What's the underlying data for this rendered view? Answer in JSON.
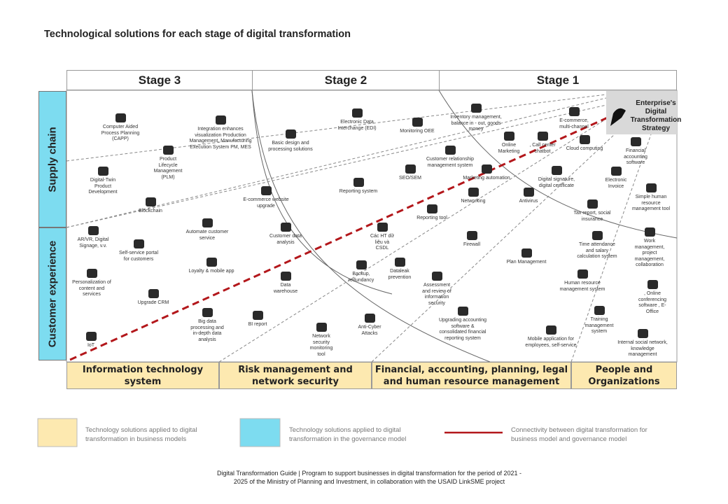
{
  "title": "Technological solutions for each stage of digital transformation",
  "stages": [
    "Stage 3",
    "Stage 2",
    "Stage 1"
  ],
  "side_labels": [
    "Supply chain",
    "Customer experience"
  ],
  "corner": "Enterprise's Digital Transformation Strategy",
  "items": [
    "Computer Aided Process Planning (CAPP)",
    "Integration enhances visualization Production Management, Manufacturing Execution System PM, MES",
    "Digital-Twin Product Development",
    "Product Lifecycle Management (PLM)",
    "Blockchain",
    "Basic design and processing solutions",
    "Electronic Data Interchange (EDI)",
    "Monitoring OEE",
    "Inventory management, balance in - out, goods money",
    "E-commerce website upgrade",
    "Reporting system",
    "SEO/SEM",
    "Customer relationship management system",
    "Online Marketing",
    ", Call center chatbot",
    "E-commerce, multi-channel",
    "Cloud computing",
    "Marketing automation",
    "Digital signature, digital certificate",
    "Financial accounting software",
    "Electronic Invoice",
    "Simple human resource management tool",
    "Antivirus",
    "Networking",
    "Reporting tool",
    "Tax report, social insurance",
    "AR/VR, Digital Signage, v.v.",
    "Self-service portal for customers",
    "Automate customer service",
    "Customer data analysis",
    "Các HT dữ liệu và CSDL",
    "Firewall",
    "Plan Management",
    "Time attendance and salary calculation system",
    "Work management, project management, collaboration",
    "Personalization of content and services",
    "Upgrade CRM",
    "Loyalty & mobile app",
    "Data warehouse",
    "Backup, redundancy",
    "Dataleak prevention",
    "Assessment and review of information security",
    "Human resource management system",
    ", Online conferencing software , E-Office",
    "IoT",
    "BI report",
    "Big data processing and in-depth data analysis",
    "Network security monitoring tool",
    "Anti-Cyber Attacks",
    "Upgrading accounting software & consolidated financial reporting system",
    "Mobile application for employees, self-service",
    "Training management system",
    "Internal social network, knowledge management"
  ],
  "categories": [
    "Information technology system",
    "Risk management and network security",
    "Financial, accounting, planning, legal and human resource management",
    "People and Organizations"
  ],
  "legend": [
    "Technology solutions applied to digital transformation in business models",
    "Technology solutions applied to digital transformation in the governance model",
    "Connectivity between digital transformation for business model and governance model"
  ],
  "footer": "Digital Transformation Guide | Program to support businesses in digital transformation for the period of 2021 - 2025 of the Ministry of Planning and Investment, in collaboration with the USAID LinkSME project"
}
